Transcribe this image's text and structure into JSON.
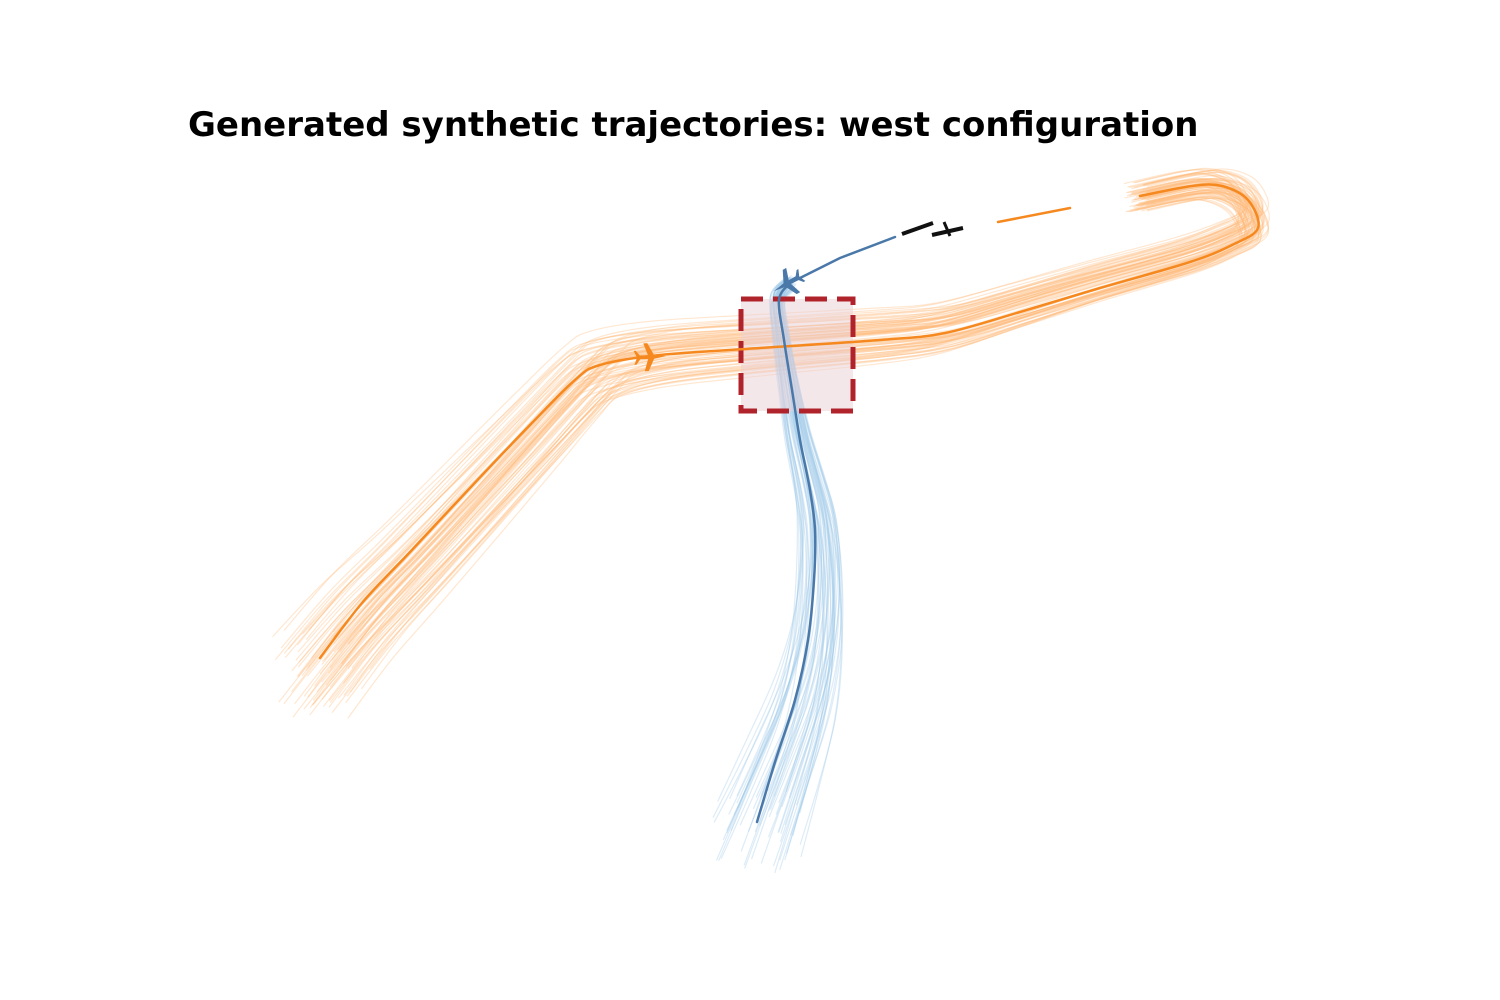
{
  "figure": {
    "title": "Generated synthetic trajectories: west configuration"
  },
  "colors": {
    "orange_main": "#f5891f",
    "orange_sample": "#ffb97a",
    "blue_main": "#4a78a8",
    "blue_sample": "#9ec9e8",
    "runway": "#111111",
    "box_edge": "#b0232a",
    "box_fill": "#e9cfd5"
  },
  "chart_data": {
    "type": "line",
    "title": "Generated synthetic trajectories: west configuration",
    "xlabel": "",
    "ylabel": "",
    "axes": "off",
    "grid": false,
    "legend": "none",
    "series": [
      {
        "role": "orange-reference",
        "sample_count": 80,
        "direction_marker": "plane-icon",
        "points": [
          [
            320,
            658
          ],
          [
            362,
            603
          ],
          [
            410,
            552
          ],
          [
            470,
            488
          ],
          [
            530,
            425
          ],
          [
            575,
            380
          ],
          [
            600,
            365
          ],
          [
            660,
            355
          ],
          [
            760,
            348
          ],
          [
            880,
            340
          ],
          [
            945,
            333
          ],
          [
            1020,
            312
          ],
          [
            1100,
            288
          ],
          [
            1190,
            262
          ],
          [
            1232,
            245
          ],
          [
            1258,
            228
          ],
          [
            1248,
            200
          ],
          [
            1222,
            186
          ],
          [
            1192,
            186
          ],
          [
            1140,
            196
          ],
          [
            1070,
            208
          ],
          [
            998,
            222
          ]
        ]
      },
      {
        "role": "blue-reference",
        "sample_count": 60,
        "direction_marker": "plane-icon",
        "points": [
          [
            757,
            822
          ],
          [
            775,
            762
          ],
          [
            795,
            700
          ],
          [
            808,
            640
          ],
          [
            814,
            580
          ],
          [
            815,
            530
          ],
          [
            810,
            490
          ],
          [
            800,
            440
          ],
          [
            792,
            390
          ],
          [
            784,
            340
          ],
          [
            779,
            300
          ],
          [
            790,
            283
          ],
          [
            840,
            258
          ],
          [
            895,
            237
          ]
        ]
      }
    ],
    "runways": 2,
    "highlight_region": "dashed square box"
  }
}
